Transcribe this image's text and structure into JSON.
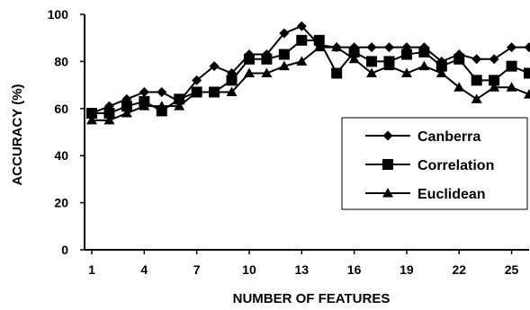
{
  "chart_data": {
    "type": "line",
    "title": "",
    "xlabel": "NUMBER OF FEATURES",
    "ylabel": "ACCURACY (%)",
    "xlim": [
      1,
      26
    ],
    "ylim": [
      0,
      100
    ],
    "x_ticks": [
      1,
      4,
      7,
      10,
      13,
      16,
      19,
      22,
      25
    ],
    "y_ticks": [
      0,
      20,
      40,
      60,
      80,
      100
    ],
    "grid": false,
    "legend_position": "right",
    "x": [
      1,
      2,
      3,
      4,
      5,
      6,
      7,
      8,
      9,
      10,
      11,
      12,
      13,
      14,
      15,
      16,
      17,
      18,
      19,
      20,
      21,
      22,
      23,
      24,
      25,
      26
    ],
    "series": [
      {
        "name": "Canberra",
        "marker": "diamond",
        "color": "#000000",
        "values": [
          58,
          61,
          64,
          67,
          67,
          63,
          72,
          78,
          75,
          83,
          83,
          92,
          95,
          87,
          86,
          86,
          86,
          86,
          86,
          86,
          80,
          83,
          81,
          81,
          86,
          86
        ]
      },
      {
        "name": "Correlation",
        "marker": "square",
        "color": "#000000",
        "values": [
          58,
          58,
          61,
          63,
          59,
          64,
          67,
          67,
          72,
          81,
          81,
          83,
          89,
          89,
          75,
          84,
          80,
          80,
          83,
          84,
          78,
          81,
          72,
          72,
          78,
          75
        ]
      },
      {
        "name": "Euclidean",
        "marker": "triangle",
        "color": "#000000",
        "values": [
          55,
          55,
          58,
          61,
          61,
          61,
          67,
          67,
          67,
          75,
          75,
          78,
          80,
          86,
          86,
          81,
          75,
          78,
          75,
          78,
          75,
          69,
          64,
          69,
          69,
          66
        ]
      }
    ]
  }
}
